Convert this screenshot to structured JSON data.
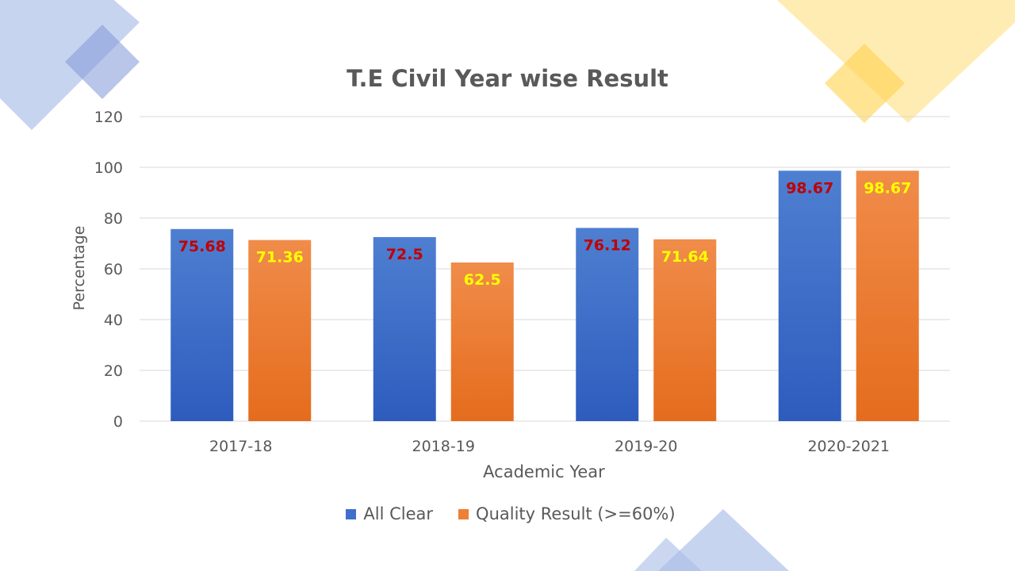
{
  "chart_data": {
    "type": "bar",
    "title": "T.E Civil Year wise Result",
    "xlabel": "Academic Year",
    "ylabel": "Percentage",
    "categories": [
      "2017-18",
      "2018-19",
      "2019-20",
      "2020-2021"
    ],
    "ylim": [
      0,
      120
    ],
    "yticks": [
      0,
      20,
      40,
      60,
      80,
      100,
      120
    ],
    "grid": true,
    "legend_position": "bottom",
    "series": [
      {
        "name": "All Clear",
        "values": [
          75.68,
          72.5,
          76.12,
          98.67
        ],
        "labels": [
          "75.68",
          "72.5",
          "76.12",
          "98.67"
        ],
        "color_top": "#4E7FD1",
        "color_bottom": "#2E5CBE",
        "label_color": "#C00000"
      },
      {
        "name": "Quality Result (>=60%)",
        "values": [
          71.36,
          62.5,
          71.64,
          98.67
        ],
        "labels": [
          "71.36",
          "62.5",
          "71.64",
          "98.67"
        ],
        "color_top": "#F08C4A",
        "color_bottom": "#E56C1D",
        "label_color": "#FFFF00"
      }
    ]
  },
  "theme": {
    "text_color": "#595959",
    "grid_color": "#D9D9D9",
    "deco_blue": "#A9BDE6",
    "deco_yellow": "#FFD966"
  }
}
